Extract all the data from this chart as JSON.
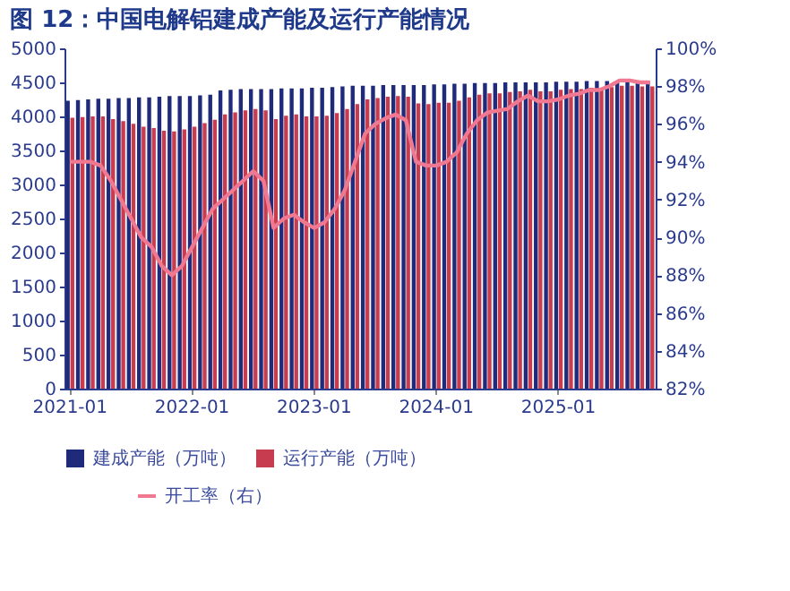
{
  "chart_data": {
    "type": "bar",
    "title": "图 12：中国电解铝建成产能及运行产能情况",
    "categories": [
      "2021-01",
      null,
      null,
      null,
      null,
      null,
      null,
      null,
      null,
      null,
      null,
      null,
      "2022-01",
      null,
      null,
      null,
      null,
      null,
      null,
      null,
      null,
      null,
      null,
      null,
      "2023-01",
      null,
      null,
      null,
      null,
      null,
      null,
      null,
      null,
      null,
      null,
      null,
      "2024-01",
      null,
      null,
      null,
      null,
      null,
      null,
      null,
      null,
      null,
      null,
      null,
      "2025-01",
      null,
      null,
      null,
      null,
      null,
      null,
      null,
      null,
      null
    ],
    "series": [
      {
        "name": "建成产能（万吨）",
        "color": "#1f2b7a",
        "values": [
          4230,
          4240,
          4250,
          4260,
          4260,
          4270,
          4270,
          4280,
          4280,
          4290,
          4300,
          4300,
          4300,
          4310,
          4320,
          4380,
          4390,
          4400,
          4400,
          4400,
          4400,
          4410,
          4410,
          4410,
          4420,
          4420,
          4430,
          4440,
          4450,
          4450,
          4450,
          4460,
          4460,
          4460,
          4460,
          4460,
          4470,
          4470,
          4480,
          4480,
          4490,
          4490,
          4490,
          4500,
          4500,
          4500,
          4500,
          4500,
          4510,
          4510,
          4510,
          4520,
          4520,
          4520,
          4520,
          4520,
          4520,
          4520
        ]
      },
      {
        "name": "运行产能（万吨）",
        "color": "#c83c50",
        "values": [
          3980,
          3990,
          4000,
          4000,
          3960,
          3930,
          3890,
          3850,
          3830,
          3790,
          3780,
          3810,
          3850,
          3900,
          3950,
          4030,
          4060,
          4090,
          4110,
          4090,
          3960,
          4010,
          4030,
          4000,
          4000,
          4010,
          4050,
          4110,
          4180,
          4250,
          4270,
          4290,
          4300,
          4290,
          4190,
          4180,
          4200,
          4200,
          4230,
          4280,
          4320,
          4340,
          4340,
          4360,
          4370,
          4390,
          4370,
          4370,
          4390,
          4400,
          4400,
          4420,
          4420,
          4430,
          4450,
          4450,
          4440,
          4440
        ]
      },
      {
        "name": "开工率（右）",
        "color": "#f07890",
        "type": "line",
        "axis": "y2",
        "values": [
          94,
          94,
          94,
          93.8,
          93,
          92,
          91,
          90,
          89.5,
          88.5,
          88,
          88.5,
          89.5,
          90.5,
          91.5,
          92,
          92.5,
          93,
          93.5,
          93,
          90.5,
          91,
          91.2,
          90.8,
          90.5,
          90.8,
          91.5,
          92.5,
          94,
          95.5,
          96,
          96.3,
          96.5,
          96.2,
          94,
          93.8,
          93.8,
          94,
          94.5,
          95.5,
          96.2,
          96.6,
          96.7,
          96.8,
          97.2,
          97.5,
          97.2,
          97.2,
          97.3,
          97.5,
          97.6,
          97.8,
          97.8,
          98,
          98.3,
          98.3,
          98.2,
          98.2
        ]
      }
    ],
    "ylim": [
      0,
      5000
    ],
    "yticks": [
      0,
      500,
      1000,
      1500,
      2000,
      2500,
      3000,
      3500,
      4000,
      4500,
      5000
    ],
    "y2lim": [
      82,
      100
    ],
    "y2ticks": [
      {
        "value": 82,
        "label": "82%"
      },
      {
        "value": 84,
        "label": "84%"
      },
      {
        "value": 86,
        "label": "86%"
      },
      {
        "value": 88,
        "label": "88%"
      },
      {
        "value": 90,
        "label": "90%"
      },
      {
        "value": 92,
        "label": "92%"
      },
      {
        "value": 94,
        "label": "94%"
      },
      {
        "value": 96,
        "label": "96%"
      },
      {
        "value": 98,
        "label": "98%"
      },
      {
        "value": 100,
        "label": "100%"
      }
    ],
    "grid": false,
    "legend": "bottom"
  }
}
